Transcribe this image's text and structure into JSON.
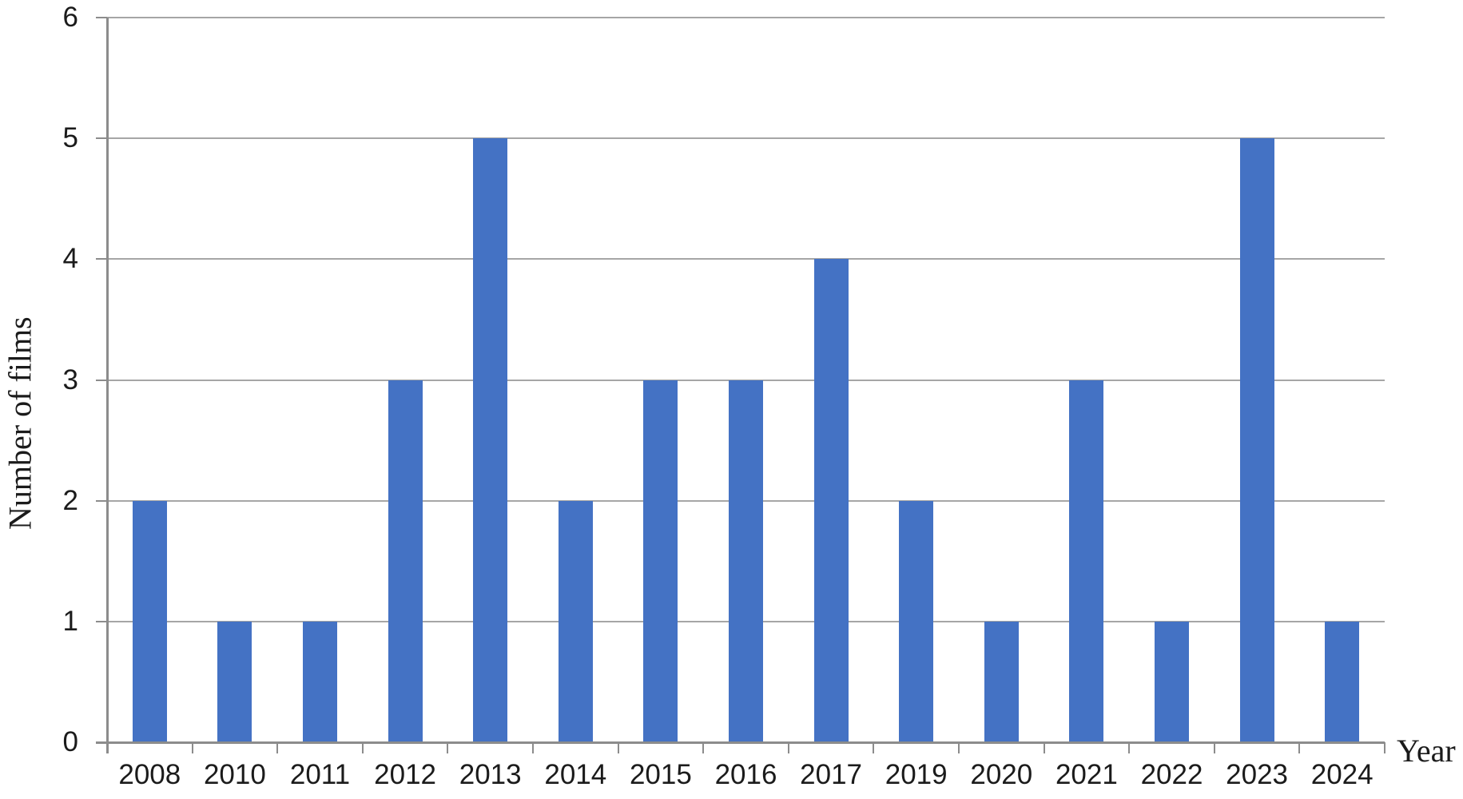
{
  "chart_data": {
    "type": "bar",
    "title": "",
    "xlabel": "Year",
    "ylabel": "Number of films",
    "categories": [
      "2008",
      "2010",
      "2011",
      "2012",
      "2013",
      "2014",
      "2015",
      "2016",
      "2017",
      "2019",
      "2020",
      "2021",
      "2022",
      "2023",
      "2024"
    ],
    "values": [
      2,
      1,
      1,
      3,
      5,
      2,
      3,
      3,
      4,
      2,
      1,
      3,
      1,
      5,
      1
    ],
    "ylim": [
      0,
      6
    ],
    "yticks": [
      0,
      1,
      2,
      3,
      4,
      5,
      6
    ],
    "grid": "horizontal",
    "legend": "none",
    "colors": {
      "bar": "#4472C4",
      "gridline": "#a6a6a6",
      "axis": "#8c8c8c",
      "text": "#1b1b1b"
    }
  }
}
